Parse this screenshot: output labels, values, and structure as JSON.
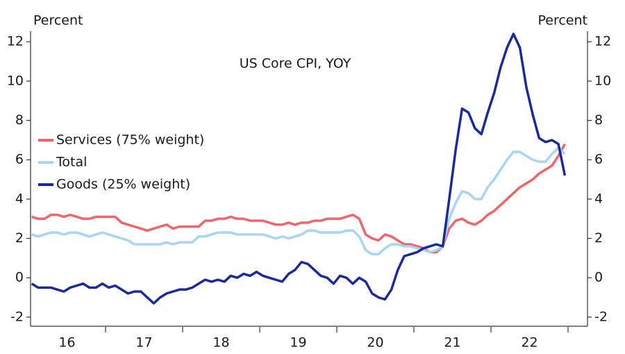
{
  "chart_data": {
    "type": "line",
    "title": "US Core CPI, YOY",
    "y_label": "Percent",
    "y2_label": "Percent",
    "categories": [
      null,
      null,
      null,
      null,
      null,
      null,
      "16",
      null,
      null,
      null,
      null,
      null,
      null,
      null,
      null,
      null,
      null,
      null,
      "17",
      null,
      null,
      null,
      null,
      null,
      null,
      null,
      null,
      null,
      null,
      null,
      "18",
      null,
      null,
      null,
      null,
      null,
      null,
      null,
      null,
      null,
      null,
      null,
      "19",
      null,
      null,
      null,
      null,
      null,
      null,
      null,
      null,
      null,
      null,
      null,
      "20",
      null,
      null,
      null,
      null,
      null,
      null,
      null,
      null,
      null,
      null,
      null,
      "21",
      null,
      null,
      null,
      null,
      null,
      null,
      null,
      null,
      null,
      null,
      null,
      "22",
      null,
      null,
      null,
      null,
      null
    ],
    "series": [
      {
        "name": "Services (75% weight)",
        "color": "#f0646a",
        "values": [
          3.1,
          3.0,
          3.0,
          3.2,
          3.2,
          3.1,
          3.2,
          3.1,
          3.0,
          3.0,
          3.1,
          3.1,
          3.1,
          3.1,
          2.8,
          2.7,
          2.6,
          2.5,
          2.4,
          2.5,
          2.6,
          2.7,
          2.5,
          2.6,
          2.6,
          2.6,
          2.6,
          2.9,
          2.9,
          3.0,
          3.0,
          3.1,
          3.0,
          3.0,
          2.9,
          2.9,
          2.9,
          2.8,
          2.7,
          2.7,
          2.8,
          2.7,
          2.8,
          2.8,
          2.9,
          2.9,
          3.0,
          3.0,
          3.0,
          3.1,
          3.2,
          3.0,
          2.2,
          2.0,
          1.9,
          2.2,
          2.1,
          1.9,
          1.7,
          1.7,
          1.6,
          1.5,
          1.3,
          1.3,
          1.6,
          2.5,
          2.9,
          3.0,
          2.8,
          2.7,
          2.9,
          3.2,
          3.4,
          3.7,
          4.0,
          4.3,
          4.6,
          4.8,
          5.0,
          5.3,
          5.5,
          5.7,
          6.2,
          6.8
        ]
      },
      {
        "name": "Total",
        "color": "#a8d4f5",
        "values": [
          2.2,
          2.1,
          2.2,
          2.3,
          2.3,
          2.2,
          2.3,
          2.3,
          2.2,
          2.1,
          2.2,
          2.3,
          2.2,
          2.1,
          2.0,
          1.9,
          1.7,
          1.7,
          1.7,
          1.7,
          1.7,
          1.8,
          1.7,
          1.8,
          1.8,
          1.8,
          2.1,
          2.1,
          2.2,
          2.3,
          2.3,
          2.3,
          2.2,
          2.2,
          2.2,
          2.2,
          2.2,
          2.1,
          2.0,
          2.1,
          2.0,
          2.1,
          2.2,
          2.4,
          2.4,
          2.3,
          2.3,
          2.3,
          2.3,
          2.4,
          2.4,
          2.1,
          1.4,
          1.2,
          1.2,
          1.5,
          1.7,
          1.7,
          1.6,
          1.6,
          1.5,
          1.4,
          1.3,
          1.4,
          1.6,
          3.0,
          3.8,
          4.4,
          4.3,
          4.0,
          4.0,
          4.6,
          5.0,
          5.5,
          6.0,
          6.4,
          6.4,
          6.2,
          6.0,
          5.9,
          5.9,
          6.3,
          6.6,
          6.3
        ]
      },
      {
        "name": "Goods (25% weight)",
        "color": "#1a2a9c",
        "values": [
          -0.3,
          -0.5,
          -0.5,
          -0.5,
          -0.6,
          -0.7,
          -0.5,
          -0.4,
          -0.3,
          -0.5,
          -0.5,
          -0.3,
          -0.5,
          -0.4,
          -0.6,
          -0.8,
          -0.7,
          -0.7,
          -1.0,
          -1.3,
          -1.0,
          -0.8,
          -0.7,
          -0.6,
          -0.6,
          -0.5,
          -0.3,
          -0.1,
          -0.2,
          -0.1,
          -0.2,
          0.1,
          0.0,
          0.2,
          0.1,
          0.3,
          0.1,
          0.0,
          -0.1,
          -0.2,
          0.2,
          0.4,
          0.8,
          0.7,
          0.4,
          0.1,
          0.0,
          -0.3,
          0.1,
          0.0,
          -0.3,
          0.0,
          -0.2,
          -0.8,
          -1.0,
          -1.1,
          -0.6,
          0.4,
          1.1,
          1.2,
          1.3,
          1.5,
          1.6,
          1.7,
          1.6,
          4.0,
          6.5,
          8.6,
          8.4,
          7.6,
          7.3,
          8.4,
          9.4,
          10.7,
          11.7,
          12.4,
          11.7,
          9.7,
          8.3,
          7.1,
          6.9,
          7.0,
          6.8,
          5.2
        ]
      }
    ],
    "ylim": [
      -2.5,
      12.5
    ],
    "yticks": [
      -2,
      0,
      2,
      4,
      6,
      8,
      10,
      12
    ],
    "y2lim": [
      -2.5,
      12.5
    ],
    "y2ticks": [
      -2,
      0,
      2,
      4,
      6,
      8,
      10,
      12
    ],
    "grid": false,
    "legend": "left"
  }
}
